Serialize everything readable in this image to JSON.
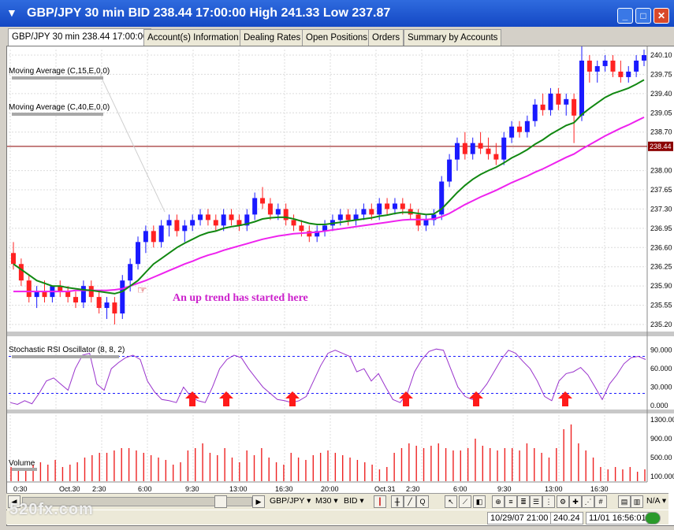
{
  "window": {
    "title": "GBP/JPY 30 min BID 238.44 17:00:00 High 241.33 Low 237.87"
  },
  "tabs": [
    {
      "label": "GBP/JPY 30 min 238.44 17:00:00"
    },
    {
      "label": "Account(s) Information"
    },
    {
      "label": "Dealing Rates"
    },
    {
      "label": "Open Positions"
    },
    {
      "label": "Orders"
    },
    {
      "label": "Summary by Accounts"
    }
  ],
  "indicators": {
    "ma15": "Moving Average (C,15,E,0,0)",
    "ma40": "Moving Average (C,40,E,0,0)",
    "stoch": "Stochastic RSI Oscillator (8, 8, 2)",
    "volume": "Volume"
  },
  "annotation": "An up trend has started here",
  "current_price": "238.44",
  "price_axis": [
    "240.10",
    "239.75",
    "239.40",
    "239.05",
    "238.70",
    "238.00",
    "237.65",
    "237.30",
    "236.95",
    "236.60",
    "236.25",
    "235.90",
    "235.55",
    "235.20"
  ],
  "stoch_axis": [
    "90.000",
    "60.000",
    "30.000",
    "0.000"
  ],
  "volume_axis": [
    "1300.00",
    "900.00",
    "500.00",
    "100.000"
  ],
  "time_axis": [
    "0:30",
    "Oct.30",
    "2:30",
    "6:00",
    "9:30",
    "13:00",
    "16:30",
    "20:00",
    "Oct.31",
    "2:30",
    "6:00",
    "9:30",
    "13:00",
    "16:30"
  ],
  "toolbar": {
    "symbol": "GBP/JPY",
    "timeframe": "M30",
    "side": "BID",
    "na": "N/A"
  },
  "status": {
    "datetime": "10/29/07 21:00",
    "price": "240.24",
    "clock": "11/01 16:56:01"
  },
  "watermark": "520fx.com",
  "colors": {
    "up": "#1a1aff",
    "down": "#ff2222",
    "ma15": "#118811",
    "ma40": "#ee22ee",
    "stoch": "#9933cc",
    "volume": "#ee2222",
    "arrow": "#ff1a1a"
  },
  "chart_data": [
    {
      "type": "candlestick",
      "title": "GBP/JPY 30 min",
      "ylim": [
        235.1,
        240.2
      ],
      "series": [
        {
          "name": "GBP/JPY",
          "values": [
            [
              236.5,
              236.7,
              236.2,
              236.3
            ],
            [
              236.3,
              236.4,
              235.9,
              236.0
            ],
            [
              236.0,
              236.1,
              235.6,
              235.7
            ],
            [
              235.7,
              235.9,
              235.5,
              235.8
            ],
            [
              235.8,
              236.0,
              235.6,
              235.7
            ],
            [
              235.7,
              235.9,
              235.6,
              235.9
            ],
            [
              235.9,
              236.0,
              235.7,
              235.8
            ],
            [
              235.8,
              235.9,
              235.6,
              235.7
            ],
            [
              235.7,
              235.8,
              235.5,
              235.6
            ],
            [
              235.6,
              236.0,
              235.5,
              235.9
            ],
            [
              235.9,
              236.0,
              235.6,
              235.7
            ],
            [
              235.7,
              235.8,
              235.4,
              235.5
            ],
            [
              235.5,
              235.7,
              235.3,
              235.6
            ],
            [
              235.6,
              235.7,
              235.2,
              235.4
            ],
            [
              235.4,
              236.1,
              235.3,
              236.0
            ],
            [
              236.0,
              236.4,
              235.8,
              236.3
            ],
            [
              236.3,
              236.8,
              236.2,
              236.7
            ],
            [
              236.7,
              237.0,
              236.5,
              236.9
            ],
            [
              236.9,
              237.0,
              236.6,
              236.7
            ],
            [
              236.7,
              237.1,
              236.6,
              237.0
            ],
            [
              237.0,
              237.2,
              236.8,
              237.1
            ],
            [
              237.1,
              237.2,
              236.8,
              236.9
            ],
            [
              236.9,
              237.1,
              236.7,
              237.0
            ],
            [
              237.0,
              237.2,
              236.9,
              237.1
            ],
            [
              237.1,
              237.3,
              237.0,
              237.2
            ],
            [
              237.2,
              237.3,
              237.0,
              237.1
            ],
            [
              237.1,
              237.2,
              236.9,
              237.0
            ],
            [
              237.0,
              237.3,
              236.9,
              237.2
            ],
            [
              237.2,
              237.3,
              237.0,
              237.1
            ],
            [
              237.1,
              237.2,
              236.9,
              237.0
            ],
            [
              237.0,
              237.3,
              236.9,
              237.2
            ],
            [
              237.2,
              237.6,
              237.1,
              237.5
            ],
            [
              237.5,
              237.7,
              237.3,
              237.4
            ],
            [
              237.4,
              237.5,
              237.1,
              237.2
            ],
            [
              237.2,
              237.4,
              237.1,
              237.3
            ],
            [
              237.3,
              237.4,
              237.0,
              237.1
            ],
            [
              237.1,
              237.2,
              236.9,
              237.0
            ],
            [
              237.0,
              237.1,
              236.8,
              236.9
            ],
            [
              236.9,
              237.0,
              236.7,
              236.8
            ],
            [
              236.8,
              237.0,
              236.7,
              236.9
            ],
            [
              236.9,
              237.1,
              236.8,
              237.0
            ],
            [
              237.0,
              237.2,
              236.9,
              237.1
            ],
            [
              237.1,
              237.3,
              237.0,
              237.2
            ],
            [
              237.2,
              237.3,
              237.0,
              237.1
            ],
            [
              237.1,
              237.3,
              237.0,
              237.2
            ],
            [
              237.2,
              237.4,
              237.1,
              237.3
            ],
            [
              237.3,
              237.4,
              237.1,
              237.2
            ],
            [
              237.2,
              237.5,
              237.1,
              237.4
            ],
            [
              237.4,
              237.5,
              237.2,
              237.3
            ],
            [
              237.3,
              237.5,
              237.2,
              237.4
            ],
            [
              237.4,
              237.5,
              237.2,
              237.3
            ],
            [
              237.3,
              237.4,
              237.1,
              237.2
            ],
            [
              237.2,
              237.3,
              236.9,
              237.0
            ],
            [
              237.0,
              237.2,
              236.9,
              237.1
            ],
            [
              237.1,
              237.3,
              237.0,
              237.2
            ],
            [
              237.2,
              237.9,
              237.1,
              237.8
            ],
            [
              237.8,
              238.3,
              237.7,
              238.2
            ],
            [
              238.2,
              238.6,
              238.0,
              238.5
            ],
            [
              238.5,
              238.7,
              238.2,
              238.3
            ],
            [
              238.3,
              238.6,
              238.2,
              238.5
            ],
            [
              238.5,
              238.7,
              238.3,
              238.4
            ],
            [
              238.4,
              238.6,
              238.2,
              238.3
            ],
            [
              238.3,
              238.5,
              238.1,
              238.2
            ],
            [
              238.2,
              238.7,
              238.1,
              238.6
            ],
            [
              238.6,
              238.9,
              238.5,
              238.8
            ],
            [
              238.8,
              238.9,
              238.6,
              238.7
            ],
            [
              238.7,
              239.0,
              238.6,
              238.9
            ],
            [
              238.9,
              239.3,
              238.8,
              239.2
            ],
            [
              239.2,
              239.4,
              239.0,
              239.1
            ],
            [
              239.1,
              239.5,
              239.0,
              239.4
            ],
            [
              239.4,
              239.5,
              239.1,
              239.2
            ],
            [
              239.2,
              239.4,
              239.0,
              239.3
            ],
            [
              239.3,
              239.4,
              238.5,
              239.0
            ],
            [
              239.0,
              240.3,
              238.9,
              240.0
            ],
            [
              240.0,
              240.1,
              239.6,
              239.8
            ],
            [
              239.8,
              240.0,
              239.6,
              239.9
            ],
            [
              239.9,
              240.1,
              239.8,
              240.0
            ],
            [
              240.0,
              240.1,
              239.7,
              239.8
            ],
            [
              239.8,
              240.0,
              239.6,
              239.7
            ],
            [
              239.7,
              239.9,
              239.6,
              239.8
            ],
            [
              239.8,
              240.1,
              239.7,
              240.0
            ],
            [
              240.0,
              240.2,
              239.9,
              240.1
            ]
          ]
        },
        {
          "name": "MA15",
          "values": [
            236.3,
            236.2,
            236.1,
            236.0,
            235.95,
            235.9,
            235.9,
            235.87,
            235.85,
            235.83,
            235.82,
            235.8,
            235.78,
            235.76,
            235.8,
            235.9,
            236.0,
            236.15,
            236.3,
            236.4,
            236.5,
            236.6,
            236.68,
            236.75,
            236.82,
            236.87,
            236.9,
            236.95,
            236.98,
            237.0,
            237.03,
            237.07,
            237.12,
            237.14,
            237.15,
            237.15,
            237.12,
            237.08,
            237.04,
            237.02,
            237.02,
            237.04,
            237.06,
            237.08,
            237.1,
            237.12,
            237.14,
            237.17,
            237.19,
            237.22,
            237.24,
            237.24,
            237.22,
            237.2,
            237.21,
            237.3,
            237.45,
            237.6,
            237.73,
            237.84,
            237.93,
            238.0,
            238.06,
            238.14,
            238.23,
            238.3,
            238.38,
            238.48,
            238.56,
            238.66,
            238.74,
            238.82,
            238.87,
            239.02,
            239.13,
            239.23,
            239.33,
            239.4,
            239.45,
            239.5,
            239.57,
            239.65
          ]
        },
        {
          "name": "MA40",
          "values": [
            235.8,
            235.8,
            235.8,
            235.8,
            235.8,
            235.8,
            235.8,
            235.8,
            235.82,
            235.82,
            235.82,
            235.82,
            235.82,
            235.83,
            235.85,
            235.9,
            235.95,
            236.0,
            236.06,
            236.12,
            236.18,
            236.24,
            236.3,
            236.35,
            236.41,
            236.46,
            236.5,
            236.55,
            236.59,
            236.63,
            236.67,
            236.71,
            236.75,
            236.78,
            236.81,
            236.83,
            236.85,
            236.86,
            236.87,
            236.88,
            236.9,
            236.92,
            236.94,
            236.96,
            236.98,
            237.0,
            237.02,
            237.04,
            237.06,
            237.08,
            237.1,
            237.11,
            237.11,
            237.11,
            237.12,
            237.16,
            237.22,
            237.3,
            237.38,
            237.45,
            237.52,
            237.58,
            237.64,
            237.71,
            237.78,
            237.84,
            237.9,
            237.97,
            238.03,
            238.1,
            238.17,
            238.24,
            238.3,
            238.39,
            238.47,
            238.55,
            238.63,
            238.7,
            238.77,
            238.83,
            238.9,
            238.97
          ]
        }
      ]
    },
    {
      "type": "line",
      "title": "Stochastic RSI Oscillator (8, 8, 2)",
      "ylim": [
        -5,
        105
      ],
      "series": [
        {
          "name": "StochRSI",
          "values": [
            5,
            2,
            8,
            3,
            20,
            40,
            45,
            35,
            25,
            60,
            82,
            85,
            35,
            25,
            60,
            70,
            78,
            82,
            75,
            40,
            22,
            10,
            8,
            5,
            30,
            15,
            8,
            5,
            30,
            60,
            75,
            82,
            78,
            60,
            45,
            30,
            20,
            10,
            8,
            5,
            8,
            15,
            40,
            65,
            85,
            90,
            85,
            80,
            55,
            60,
            40,
            52,
            30,
            10,
            5,
            20,
            55,
            75,
            88,
            92,
            90,
            60,
            30,
            15,
            10,
            20,
            35,
            55,
            75,
            90,
            85,
            72,
            60,
            40,
            15,
            8,
            40,
            52,
            55,
            62,
            50,
            30,
            10,
            35,
            50,
            68,
            78,
            80,
            75
          ]
        }
      ]
    },
    {
      "type": "bar",
      "title": "Volume",
      "ylim": [
        0,
        1400
      ],
      "series": [
        {
          "name": "Volume",
          "values": [
            300,
            250,
            250,
            350,
            400,
            350,
            450,
            300,
            350,
            400,
            500,
            550,
            600,
            600,
            650,
            700,
            700,
            650,
            600,
            550,
            500,
            450,
            350,
            400,
            650,
            700,
            800,
            600,
            550,
            700,
            500,
            400,
            650,
            550,
            700,
            500,
            400,
            350,
            600,
            500,
            450,
            550,
            600,
            650,
            600,
            550,
            500,
            450,
            400,
            350,
            250,
            300,
            600,
            700,
            800,
            750,
            700,
            750,
            800,
            700,
            650,
            650,
            700,
            900,
            750,
            700,
            650,
            700,
            700,
            650,
            800,
            700,
            600,
            500,
            700,
            1100,
            1200,
            800,
            650,
            500,
            300,
            250,
            300,
            250,
            300,
            200,
            250
          ]
        }
      ]
    }
  ]
}
